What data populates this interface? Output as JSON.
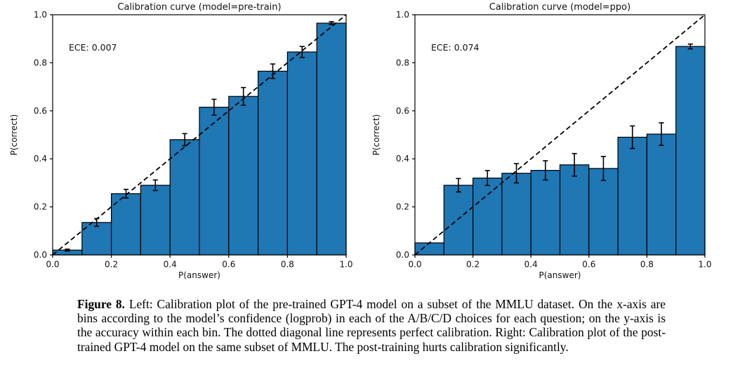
{
  "figure": {
    "caption_label": "Figure 8.",
    "caption_text": "Left: Calibration plot of the pre-trained GPT-4 model on a subset of the MMLU dataset. On the x-axis are bins according to the model’s confidence (logprob) in each of the A/B/C/D choices for each question; on the y-axis is the accuracy within each bin. The dotted diagonal line represents perfect calibration. Right: Calibration plot of the post-trained GPT-4 model on the same subset of MMLU. The post-training hurts calibration significantly."
  },
  "colors": {
    "bar_fill": "#1f77b4",
    "bar_edge": "#000000",
    "diagonal": "#000000",
    "axis": "#000000",
    "text": "#111111"
  },
  "chart_data": [
    {
      "type": "bar",
      "title": "Calibration curve (model=pre-train)",
      "annotation": "ECE: 0.007",
      "xlabel": "P(answer)",
      "ylabel": "P(correct)",
      "xlim": [
        0.0,
        1.0
      ],
      "ylim": [
        0.0,
        1.0
      ],
      "xticks": [
        0.0,
        0.2,
        0.4,
        0.6,
        0.8,
        1.0
      ],
      "yticks": [
        0.0,
        0.2,
        0.4,
        0.6,
        0.8,
        1.0
      ],
      "grid": false,
      "legend": "none",
      "diagonal_line": "perfect calibration (dashed)",
      "bin_edges": [
        0.0,
        0.1,
        0.2,
        0.3,
        0.4,
        0.5,
        0.6,
        0.7,
        0.8,
        0.9,
        1.0
      ],
      "values": [
        0.02,
        0.135,
        0.255,
        0.29,
        0.48,
        0.615,
        0.66,
        0.765,
        0.845,
        0.965
      ],
      "errors": [
        0.004,
        0.016,
        0.018,
        0.022,
        0.025,
        0.033,
        0.037,
        0.03,
        0.023,
        0.006
      ]
    },
    {
      "type": "bar",
      "title": "Calibration curve (model=ppo)",
      "annotation": "ECE: 0.074",
      "xlabel": "P(answer)",
      "ylabel": "P(correct)",
      "xlim": [
        0.0,
        1.0
      ],
      "ylim": [
        0.0,
        1.0
      ],
      "xticks": [
        0.0,
        0.2,
        0.4,
        0.6,
        0.8,
        1.0
      ],
      "yticks": [
        0.0,
        0.2,
        0.4,
        0.6,
        0.8,
        1.0
      ],
      "grid": false,
      "legend": "none",
      "diagonal_line": "perfect calibration (dashed)",
      "bin_edges": [
        0.0,
        0.1,
        0.2,
        0.3,
        0.4,
        0.5,
        0.6,
        0.7,
        0.8,
        0.9,
        1.0
      ],
      "values": [
        0.05,
        0.29,
        0.32,
        0.34,
        0.352,
        0.375,
        0.36,
        0.49,
        0.503,
        0.868
      ],
      "errors": [
        0,
        0.028,
        0.031,
        0.04,
        0.04,
        0.047,
        0.05,
        0.047,
        0.047,
        0.01
      ]
    }
  ]
}
